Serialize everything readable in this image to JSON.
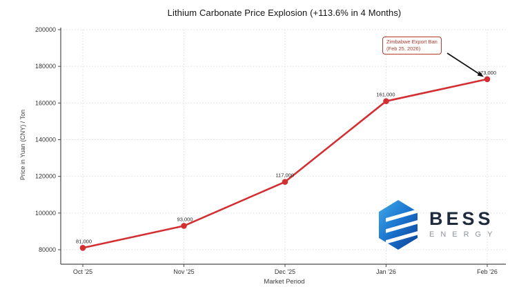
{
  "title": "Lithium Carbonate Price Explosion (+113.6% in 4 Months)",
  "chart_data": {
    "type": "line",
    "title": "Lithium Carbonate Price Explosion (+113.6% in 4 Months)",
    "x_categories": [
      "Oct '25",
      "Nov '25",
      "Dec '25",
      "Jan '26",
      "Feb '26"
    ],
    "series": [
      {
        "values": [
          81000,
          93000,
          117000,
          161000,
          173000
        ],
        "color": "#d32f33"
      }
    ],
    "point_labels": [
      "81,000",
      "93,000",
      "117,000",
      "161,000",
      "173,000"
    ],
    "xlabel": "Market Period",
    "ylabel": "Price in Yuan (CNY) / Ton",
    "ylim": [
      80000,
      200000
    ],
    "y_ticks": [
      80000,
      100000,
      120000,
      140000,
      160000,
      180000,
      200000
    ],
    "y_tick_labels": [
      "80000",
      "100000",
      "120000",
      "140000",
      "160000",
      "180000",
      "200000"
    ],
    "grid": "dotted",
    "legend": "none",
    "annotation": {
      "text_line1": "Zimbabwe Export Ban",
      "text_line2": "(Feb 25, 2026)",
      "color": "#b23a2e",
      "arrow_color": "#111111",
      "target_category": "Feb '26",
      "target_value": 173000
    }
  },
  "logo": {
    "name": "BESS",
    "subtitle": "ENERGY",
    "icon": "hexagon-stack-icon",
    "navy": "#1f2b3c",
    "gray": "#8d9299",
    "blue_light": "#41aae9",
    "blue_mid": "#1a73ce",
    "blue_dark": "#0d3f94"
  }
}
